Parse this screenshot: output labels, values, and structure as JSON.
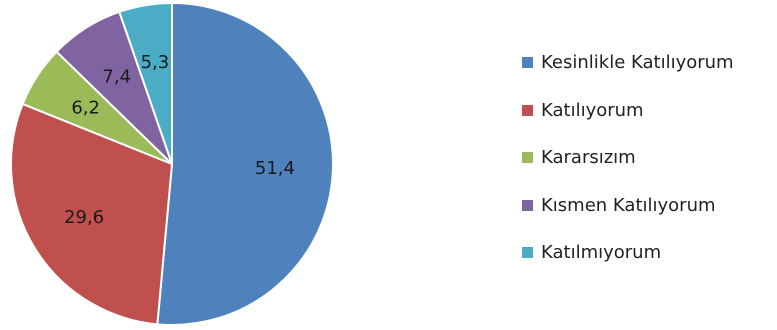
{
  "chart_data": {
    "type": "pie",
    "title": "",
    "categories": [
      "Kesinlikle Katılıyorum",
      "Katılıyorum",
      "Kararsızım",
      "Kısmen Katılıyorum",
      "Katılmıyorum"
    ],
    "values": [
      51.4,
      29.6,
      6.2,
      7.4,
      5.3
    ],
    "value_labels": [
      "51,4",
      "29,6",
      "6,2",
      "7,4",
      "5,3"
    ],
    "colors": [
      "#4F81BD",
      "#C0504D",
      "#9BBB59",
      "#8064A2",
      "#4BACC6"
    ],
    "start_angle_deg": 0,
    "direction": "clockwise",
    "legend": "right"
  }
}
